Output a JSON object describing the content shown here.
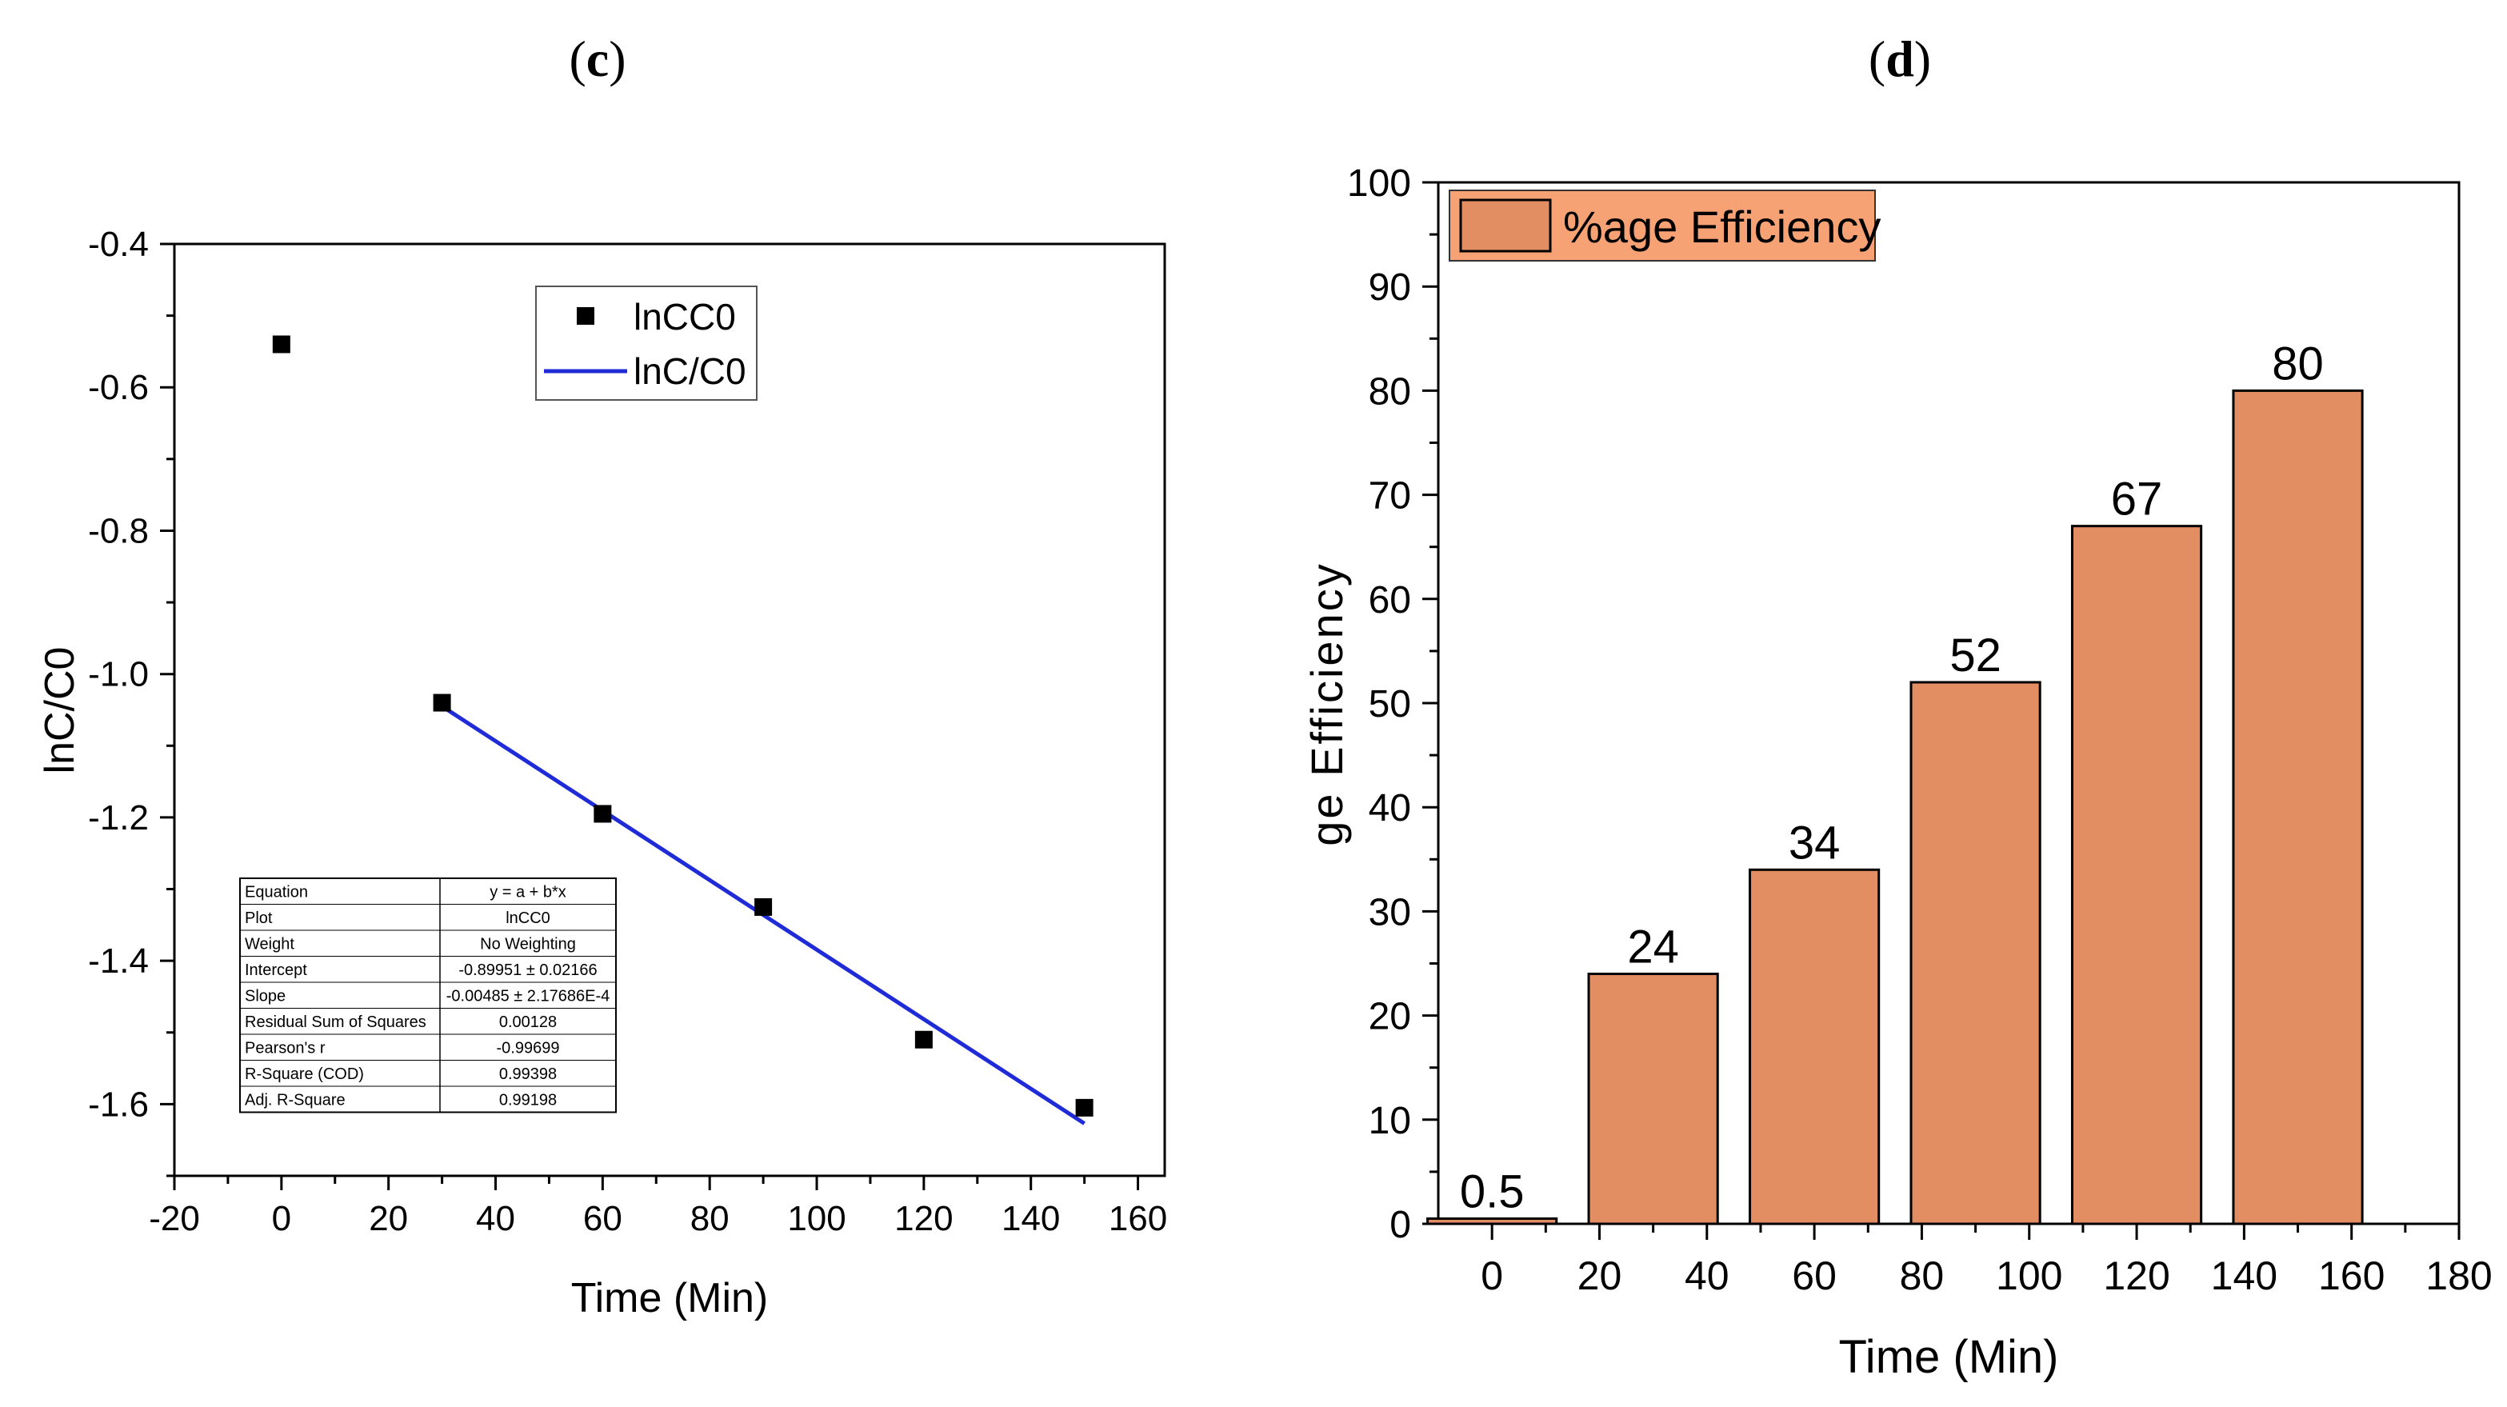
{
  "panels": {
    "c": {
      "label_open": "(",
      "label_letter": "c",
      "label_close": ")"
    },
    "d": {
      "label_open": "(",
      "label_letter": "d",
      "label_close": ")"
    }
  },
  "chart_data": [
    {
      "id": "c",
      "type": "scatter",
      "title": "",
      "xlabel": "Time (Min)",
      "ylabel": "lnC/C0",
      "xlim": [
        -20,
        165
      ],
      "ylim": [
        -1.7,
        -0.4
      ],
      "xticks": [
        -20,
        0,
        20,
        40,
        60,
        80,
        100,
        120,
        140,
        160
      ],
      "yticks": [
        -1.6,
        -1.4,
        -1.2,
        -1.0,
        -0.8,
        -0.6,
        -0.4
      ],
      "ytick_labels": [
        "-1.6",
        "-1.4",
        "-1.2",
        "-1.0",
        "-0.8",
        "-0.6",
        "-0.4"
      ],
      "grid": false,
      "legend_position": "top-center",
      "series": [
        {
          "name": "lnCC0",
          "kind": "scatter",
          "color": "#000000",
          "x": [
            0,
            30,
            60,
            90,
            120,
            150
          ],
          "y": [
            -0.54,
            -1.04,
            -1.195,
            -1.325,
            -1.51,
            -1.605
          ]
        },
        {
          "name": "lnC/C0",
          "kind": "line",
          "color": "#1f2bd6",
          "x": [
            30,
            150
          ],
          "y": [
            -1.045,
            -1.627
          ]
        }
      ],
      "fit_table": {
        "position": "bottom-left",
        "rows": [
          [
            "Equation",
            "y = a + b*x"
          ],
          [
            "Plot",
            "lnCC0"
          ],
          [
            "Weight",
            "No Weighting"
          ],
          [
            "Intercept",
            "-0.89951 ± 0.02166"
          ],
          [
            "Slope",
            "-0.00485 ± 2.17686E-4"
          ],
          [
            "Residual Sum of Squares",
            "0.00128"
          ],
          [
            "Pearson's r",
            "-0.99699"
          ],
          [
            "R-Square (COD)",
            "0.99398"
          ],
          [
            "Adj. R-Square",
            "0.99198"
          ]
        ]
      }
    },
    {
      "id": "d",
      "type": "bar",
      "title": "",
      "xlabel": "Time (Min)",
      "ylabel": "ge Efficiency",
      "xlim": [
        -10,
        180
      ],
      "ylim": [
        0,
        100
      ],
      "xticks": [
        0,
        20,
        40,
        60,
        80,
        100,
        120,
        140,
        160,
        180
      ],
      "yticks": [
        0,
        10,
        20,
        30,
        40,
        50,
        60,
        70,
        80,
        90,
        100
      ],
      "grid": false,
      "legend_position": "top-left",
      "bar_color": "#e38d63",
      "legend_color": "#f7a275",
      "series": [
        {
          "name": "%age Efficiency",
          "x": [
            0,
            30,
            60,
            90,
            120,
            150
          ],
          "values": [
            0.5,
            24,
            34,
            52,
            67,
            80
          ],
          "value_labels": [
            "0.5",
            "24",
            "34",
            "52",
            "67",
            "80"
          ]
        }
      ]
    }
  ]
}
